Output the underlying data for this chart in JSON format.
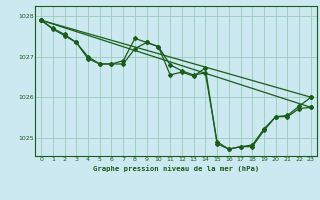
{
  "title": "Graphe pression niveau de la mer (hPa)",
  "background_color": "#cce8f0",
  "grid_color": "#99ccbb",
  "line_color": "#1a5c1a",
  "marker_color": "#1a5c1a",
  "xlim": [
    -0.5,
    23.5
  ],
  "ylim": [
    1024.55,
    1028.25
  ],
  "yticks": [
    1025,
    1026,
    1027,
    1028
  ],
  "xticks": [
    0,
    1,
    2,
    3,
    4,
    5,
    6,
    7,
    8,
    9,
    10,
    11,
    12,
    13,
    14,
    15,
    16,
    17,
    18,
    19,
    20,
    21,
    22,
    23
  ],
  "series1": [
    [
      0,
      1027.9
    ],
    [
      1,
      1027.7
    ],
    [
      2,
      1027.55
    ],
    [
      3,
      1027.35
    ],
    [
      4,
      1027.0
    ],
    [
      5,
      1026.82
    ],
    [
      6,
      1026.82
    ],
    [
      7,
      1026.9
    ],
    [
      8,
      1027.45
    ],
    [
      9,
      1027.35
    ],
    [
      10,
      1027.25
    ],
    [
      11,
      1026.8
    ],
    [
      12,
      1026.65
    ],
    [
      13,
      1026.55
    ],
    [
      14,
      1026.6
    ],
    [
      15,
      1024.9
    ],
    [
      16,
      1024.72
    ],
    [
      17,
      1024.78
    ],
    [
      18,
      1024.82
    ],
    [
      19,
      1025.22
    ],
    [
      20,
      1025.52
    ],
    [
      21,
      1025.55
    ],
    [
      22,
      1025.78
    ],
    [
      23,
      1026.0
    ]
  ],
  "series2": [
    [
      0,
      1027.9
    ],
    [
      1,
      1027.68
    ],
    [
      2,
      1027.52
    ],
    [
      3,
      1027.35
    ],
    [
      4,
      1026.95
    ],
    [
      5,
      1026.82
    ],
    [
      6,
      1026.82
    ],
    [
      7,
      1026.82
    ],
    [
      8,
      1027.2
    ],
    [
      9,
      1027.35
    ],
    [
      10,
      1027.25
    ],
    [
      11,
      1026.55
    ],
    [
      12,
      1026.62
    ],
    [
      13,
      1026.52
    ],
    [
      14,
      1026.72
    ],
    [
      15,
      1024.85
    ],
    [
      16,
      1024.72
    ],
    [
      17,
      1024.78
    ],
    [
      18,
      1024.78
    ],
    [
      19,
      1025.18
    ],
    [
      20,
      1025.52
    ],
    [
      21,
      1025.52
    ],
    [
      22,
      1025.72
    ],
    [
      23,
      1025.75
    ]
  ],
  "line_straight1": [
    [
      0,
      1027.9
    ],
    [
      23,
      1026.0
    ]
  ],
  "line_straight2": [
    [
      0,
      1027.9
    ],
    [
      23,
      1025.75
    ]
  ]
}
